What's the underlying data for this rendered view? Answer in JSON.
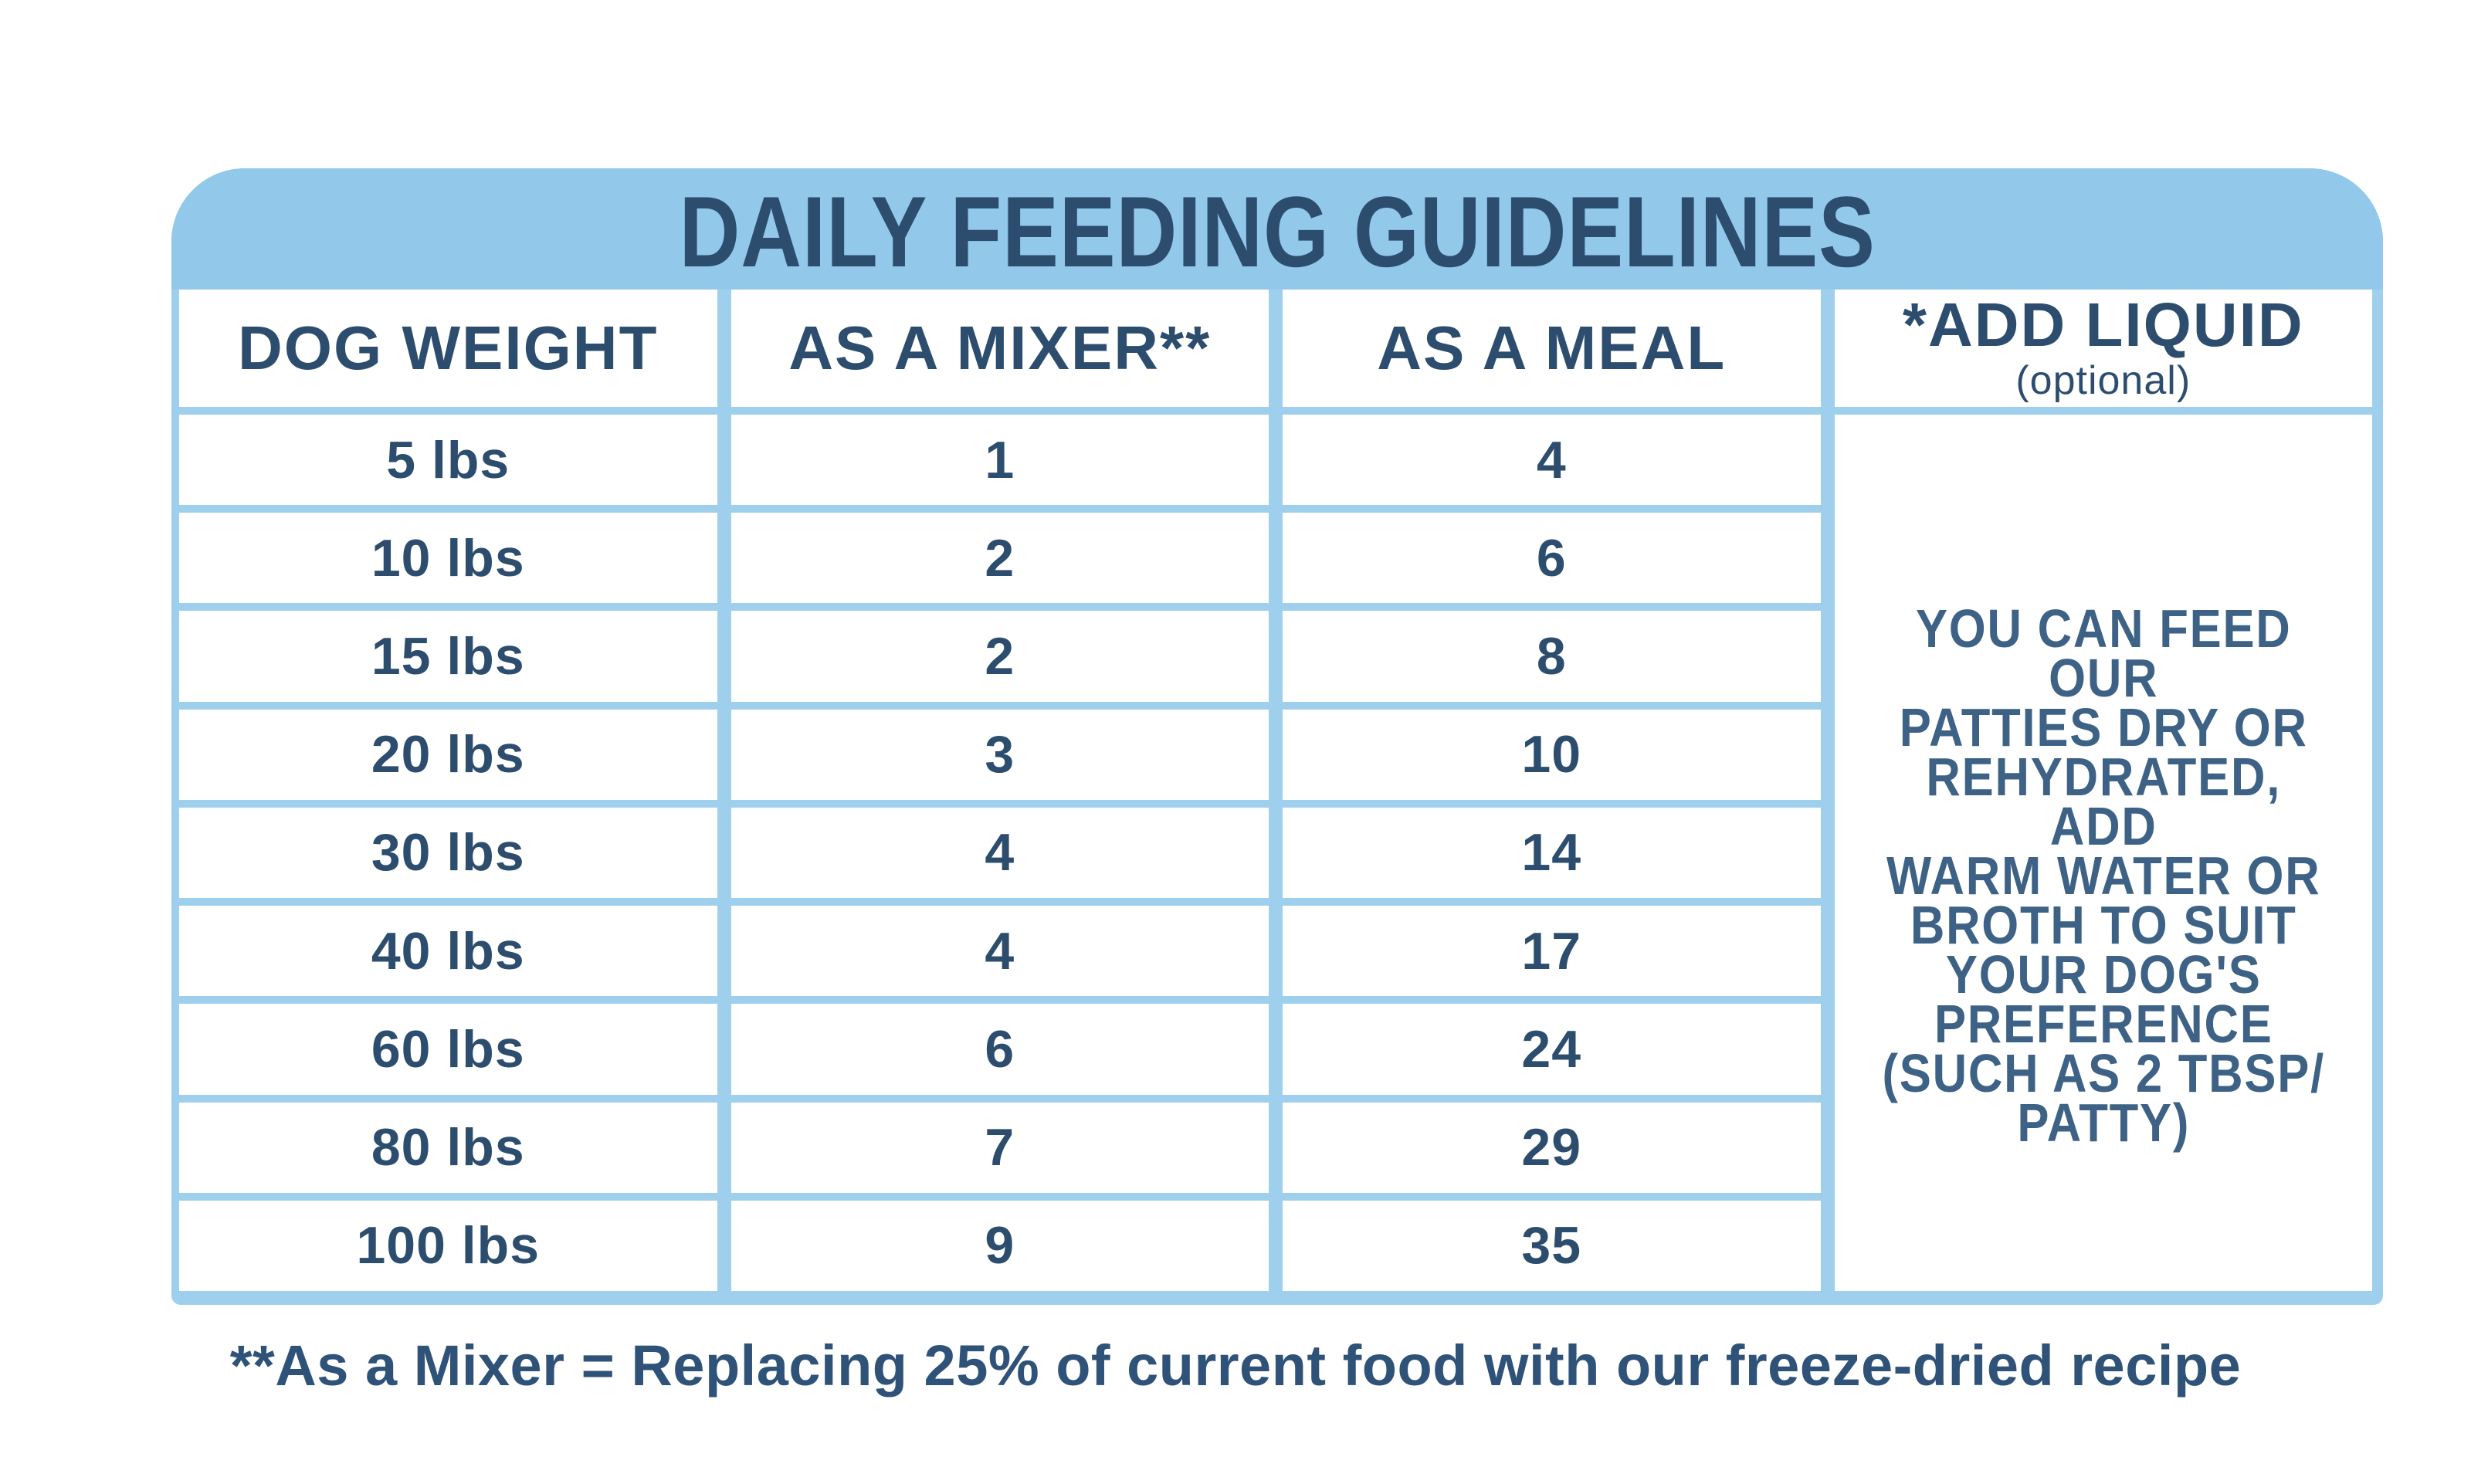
{
  "title": "DAILY FEEDING GUIDELINES",
  "table": {
    "columns": [
      "DOG WEIGHT",
      "AS A MIXER**",
      "AS A MEAL"
    ],
    "add_liquid_header": {
      "title": "*ADD LIQUID",
      "subtitle": "(optional)"
    },
    "rows": [
      {
        "weight": "5 lbs",
        "mixer": "1",
        "meal": "4"
      },
      {
        "weight": "10 lbs",
        "mixer": "2",
        "meal": "6"
      },
      {
        "weight": "15 lbs",
        "mixer": "2",
        "meal": "8"
      },
      {
        "weight": "20 lbs",
        "mixer": "3",
        "meal": "10"
      },
      {
        "weight": "30 lbs",
        "mixer": "4",
        "meal": "14"
      },
      {
        "weight": "40 lbs",
        "mixer": "4",
        "meal": "17"
      },
      {
        "weight": "60 lbs",
        "mixer": "6",
        "meal": "24"
      },
      {
        "weight": "80 lbs",
        "mixer": "7",
        "meal": "29"
      },
      {
        "weight": "100 lbs",
        "mixer": "9",
        "meal": "35"
      }
    ],
    "side_note": "YOU CAN FEED OUR\nPATTIES DRY OR\nREHYDRATED, ADD\nWARM WATER OR\nBROTH TO SUIT\nYOUR DOG'S\nPREFERENCE\n(SUCH AS 2 TBSP/\nPATTY)"
  },
  "footnote": "**As a Mixer = Replacing 25% of current food with our freeze-dried recipe",
  "colors": {
    "band_blue": "#92c8ea",
    "grid_blue": "#9ed0ee",
    "navy_text": "#2d4d6f",
    "note_navy": "#3d6286",
    "cell_white": "#ffffff"
  },
  "chart_data": {
    "type": "table",
    "title": "DAILY FEEDING GUIDELINES",
    "columns": [
      "DOG WEIGHT",
      "AS A MIXER**",
      "AS A MEAL",
      "*ADD LIQUID (optional)"
    ],
    "categories": [
      "5 lbs",
      "10 lbs",
      "15 lbs",
      "20 lbs",
      "30 lbs",
      "40 lbs",
      "60 lbs",
      "80 lbs",
      "100 lbs"
    ],
    "series": [
      {
        "name": "AS A MIXER**",
        "values": [
          1,
          2,
          2,
          3,
          4,
          4,
          6,
          7,
          9
        ]
      },
      {
        "name": "AS A MEAL",
        "values": [
          4,
          6,
          8,
          10,
          14,
          17,
          24,
          29,
          35
        ]
      }
    ],
    "annotations": [
      "YOU CAN FEED OUR PATTIES DRY OR REHYDRATED, ADD WARM WATER OR BROTH TO SUIT YOUR DOG'S PREFERENCE (SUCH AS 2 TBSP/ PATTY)",
      "**As a Mixer = Replacing 25% of current food with our freeze-dried recipe"
    ]
  }
}
